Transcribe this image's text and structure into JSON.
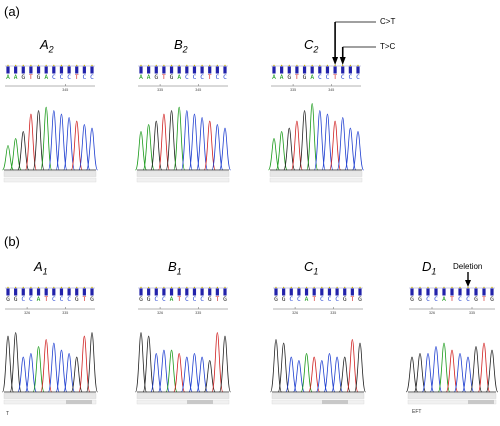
{
  "panels": {
    "a": {
      "label": "(a)"
    },
    "b": {
      "label": "(b)"
    }
  },
  "samples": [
    {
      "id": "A2",
      "base": "A",
      "sub": "2",
      "sequence": "AAGTGACCCTCC",
      "ticks": [
        "",
        "345"
      ],
      "footer": ""
    },
    {
      "id": "B2",
      "base": "B",
      "sub": "2",
      "sequence": "AAGTGACCCTCC",
      "ticks": [
        "335",
        "345"
      ],
      "footer": ""
    },
    {
      "id": "C2",
      "base": "C",
      "sub": "2",
      "sequence": "AAGTGACCTCCC",
      "ticks": [
        "335",
        "345"
      ],
      "footer": ""
    },
    {
      "id": "A1",
      "base": "A",
      "sub": "1",
      "sequence": "GGCCATCCCGTG",
      "ticks": [
        "326",
        "335"
      ],
      "footer": "T"
    },
    {
      "id": "B1",
      "base": "B",
      "sub": "1",
      "sequence": "GGCCATCCCGTG",
      "ticks": [
        "326",
        "335"
      ],
      "footer": ""
    },
    {
      "id": "C1",
      "base": "C",
      "sub": "1",
      "sequence": "GGCCATCCCGTG",
      "ticks": [
        "326",
        "335"
      ],
      "footer": ""
    },
    {
      "id": "D1",
      "base": "D",
      "sub": "1",
      "sequence": "GGCCATCCGTG",
      "ticks": [
        "326",
        "335"
      ],
      "footer": "EFT"
    }
  ],
  "annotations": {
    "c_to_t": "C>T",
    "t_to_c": "T>C",
    "deletion": "Deletion"
  },
  "colors": {
    "A": "#1a9a1a",
    "C": "#1f3fd0",
    "G": "#222222",
    "T": "#d02020",
    "bar": "#2222aa"
  }
}
